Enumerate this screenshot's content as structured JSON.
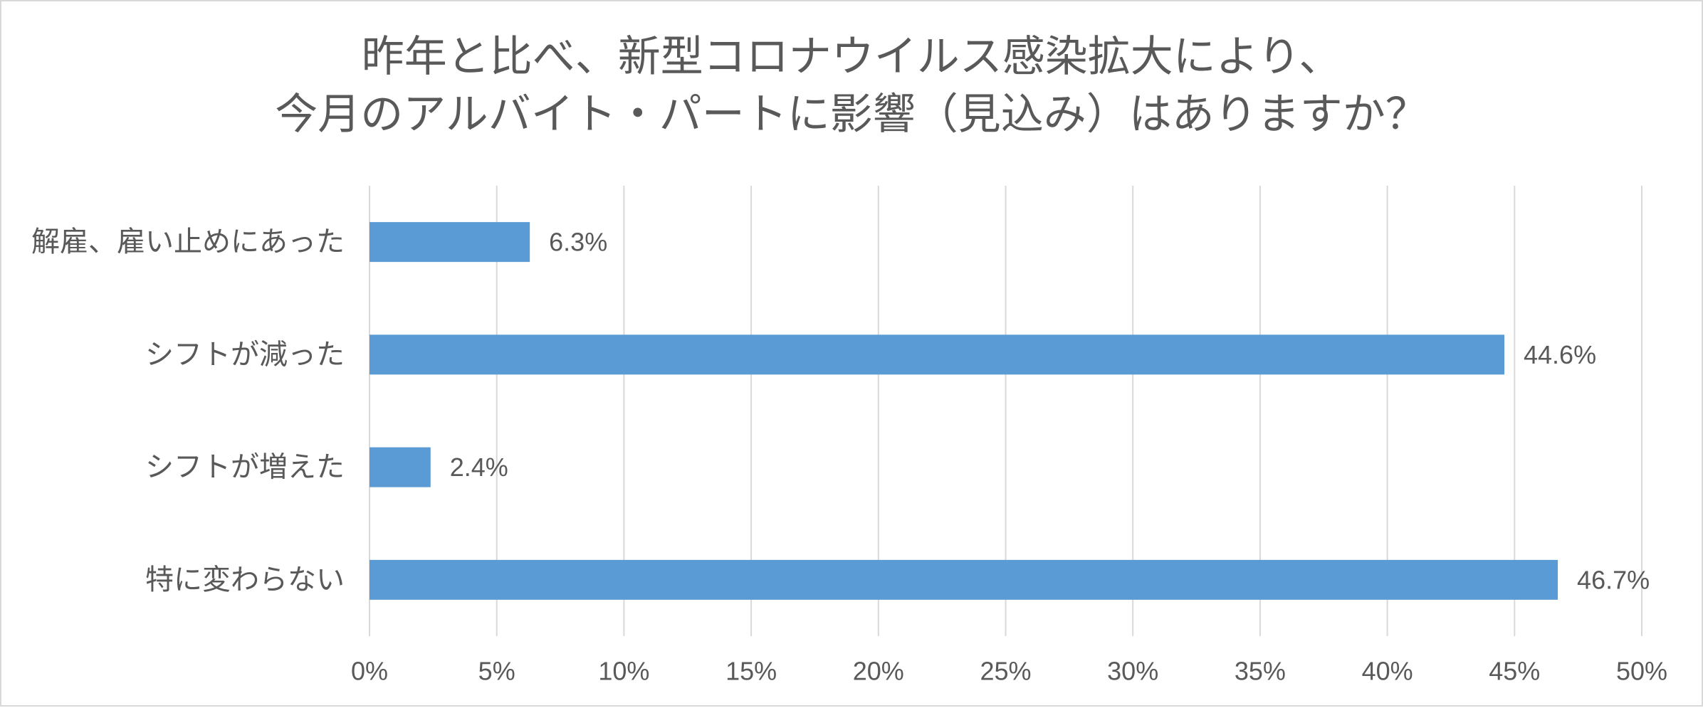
{
  "chart_data": {
    "type": "bar",
    "orientation": "horizontal",
    "title": "昨年と比べ、新型コロナウイルス感染拡大により、\n今月のアルバイト・パートに影響（見込み）はありますか？",
    "categories": [
      "解雇、雇い止めにあった",
      "シフトが減った",
      "シフトが増えた",
      "特に変わらない"
    ],
    "values": [
      6.3,
      44.6,
      2.4,
      46.7
    ],
    "value_labels": [
      "6.3%",
      "44.6%",
      "2.4%",
      "46.7%"
    ],
    "xlim": [
      0,
      50
    ],
    "x_ticks": [
      0,
      5,
      10,
      15,
      20,
      25,
      30,
      35,
      40,
      45,
      50
    ],
    "x_tick_labels": [
      "0%",
      "5%",
      "10%",
      "15%",
      "20%",
      "25%",
      "30%",
      "35%",
      "40%",
      "45%",
      "50%"
    ],
    "grid": "vertical",
    "legend": "none",
    "colors": {
      "bar": "#5B9BD5",
      "gridline": "#D9D9D9",
      "text": "#595959",
      "border": "#D9D9D9"
    }
  }
}
